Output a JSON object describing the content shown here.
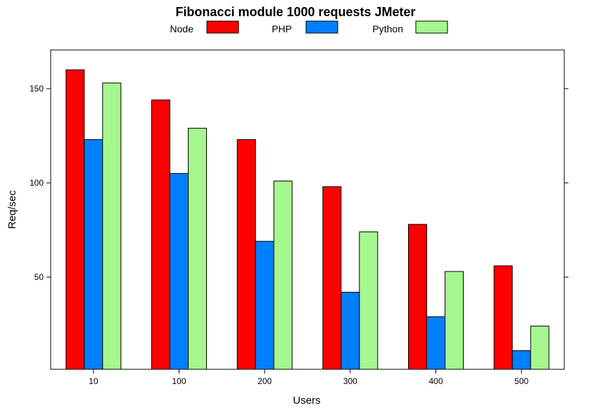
{
  "chart_data": {
    "type": "bar",
    "title": "Fibonacci module 1000 requests JMeter",
    "xlabel": "Users",
    "ylabel": "Req/sec",
    "categories": [
      "10",
      "100",
      "200",
      "300",
      "400",
      "500"
    ],
    "series": [
      {
        "name": "Node",
        "color": "#ff0000",
        "values": [
          160,
          144,
          123,
          98,
          78,
          56
        ]
      },
      {
        "name": "PHP",
        "color": "#0080ff",
        "values": [
          123,
          105,
          69,
          42,
          29,
          11
        ]
      },
      {
        "name": "Python",
        "color": "#a6f78f",
        "values": [
          153,
          129,
          101,
          74,
          53,
          24
        ]
      }
    ],
    "yticks": [
      50,
      100,
      150
    ],
    "ylim": [
      0,
      170
    ],
    "legend": "top",
    "grid": false
  }
}
